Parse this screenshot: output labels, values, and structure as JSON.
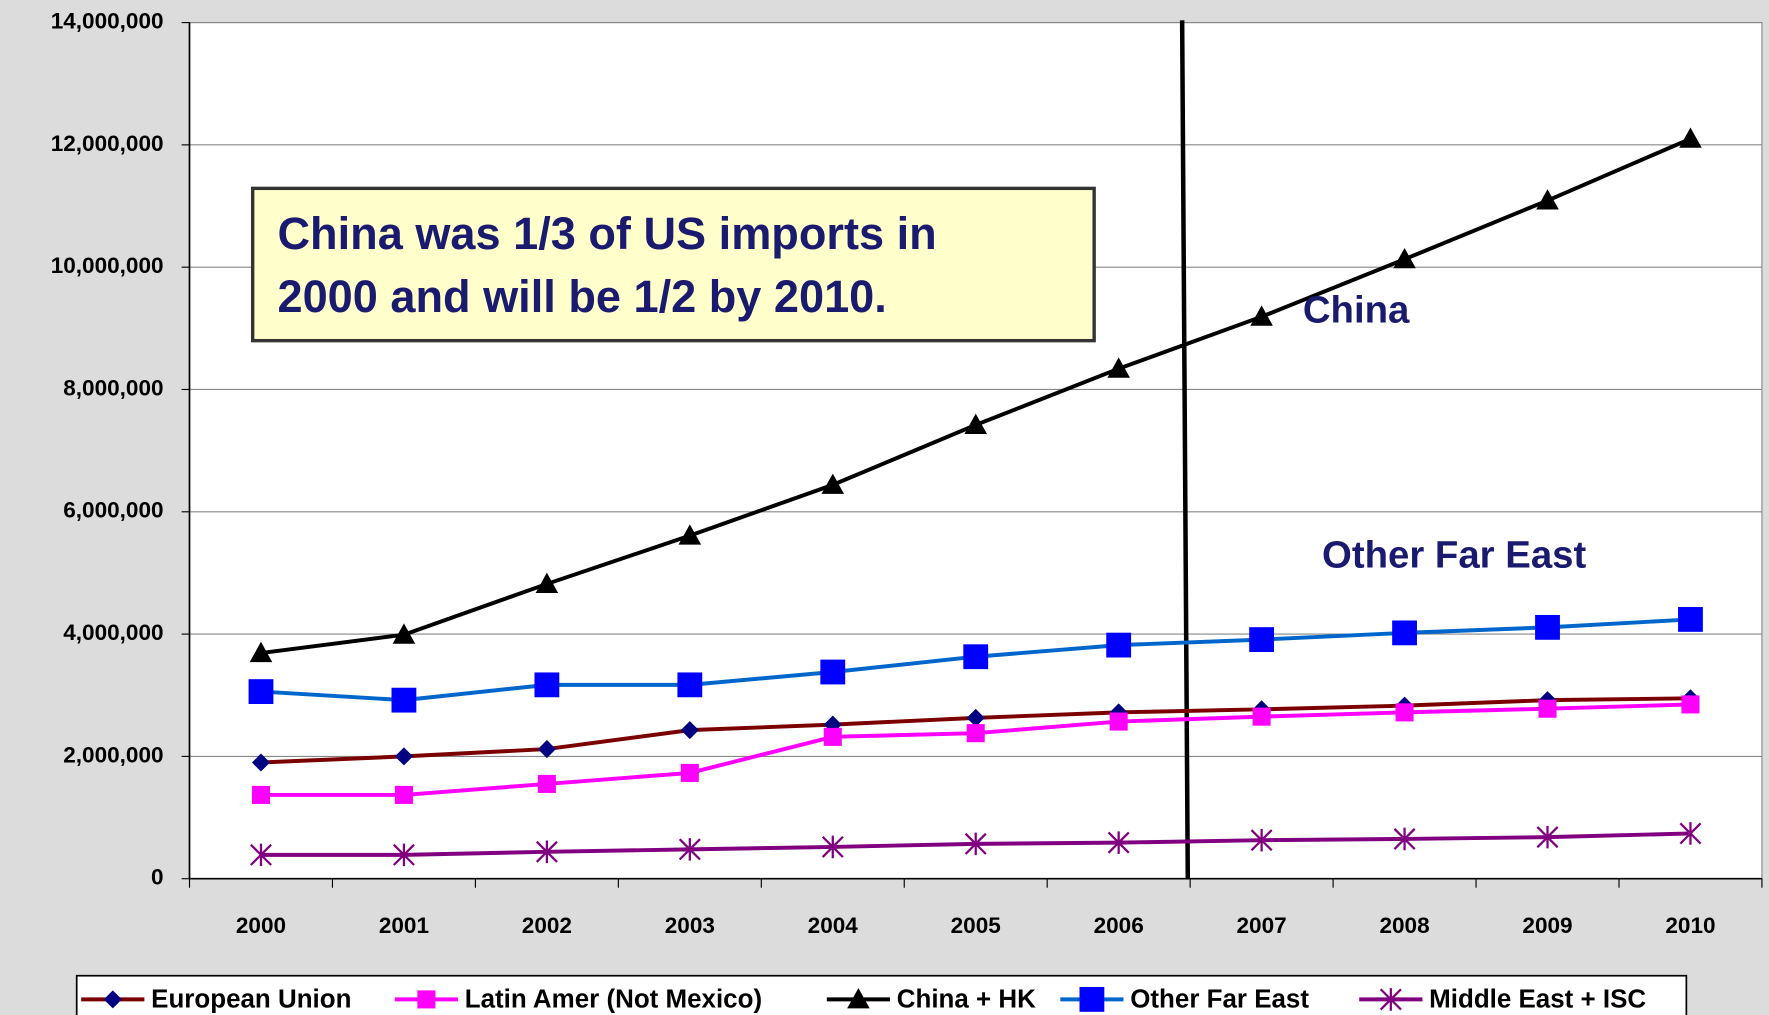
{
  "chart_data": {
    "type": "line",
    "categories": [
      "2000",
      "2001",
      "2002",
      "2003",
      "2004",
      "2005",
      "2006",
      "2007",
      "2008",
      "2009",
      "2010"
    ],
    "ylim": [
      0,
      14000000
    ],
    "yticks": [
      0,
      {
        "value": 2000000,
        "label": "2,000,000"
      },
      {
        "value": 4000000,
        "label": "4,000,000"
      },
      {
        "value": 6000000,
        "label": "6,000,000"
      },
      {
        "value": 8000000,
        "label": "8,000,000"
      },
      {
        "value": 10000000,
        "label": "10,000,000"
      },
      {
        "value": 12000000,
        "label": "12,000,000"
      },
      {
        "value": 14000000,
        "label": "14,000,000"
      }
    ],
    "grid": true,
    "legend": "bottom",
    "series": [
      {
        "name": "European Union",
        "color": "#7b0000",
        "marker": "diamond",
        "marker_color": "#000080",
        "values": [
          1900000,
          2000000,
          2120000,
          2430000,
          2520000,
          2630000,
          2720000,
          2770000,
          2830000,
          2920000,
          2950000
        ]
      },
      {
        "name": "Latin Amer (Not Mexico)",
        "color": "#ff00ff",
        "marker": "square",
        "marker_color": "#ff00ff",
        "values": [
          1370000,
          1370000,
          1550000,
          1730000,
          2320000,
          2380000,
          2570000,
          2650000,
          2720000,
          2780000,
          2850000
        ]
      },
      {
        "name": "China + HK",
        "color": "#000000",
        "marker": "triangle",
        "marker_color": "#000000",
        "values": [
          3690000,
          3990000,
          4820000,
          5610000,
          6440000,
          7420000,
          8340000,
          9190000,
          10130000,
          11090000,
          12100000
        ]
      },
      {
        "name": "Other Far East",
        "color": "#0066cc",
        "marker": "bigsquare",
        "marker_color": "#0000ff",
        "values": [
          3060000,
          2920000,
          3170000,
          3170000,
          3380000,
          3630000,
          3820000,
          3910000,
          4020000,
          4110000,
          4240000
        ]
      },
      {
        "name": "Middle East + ISC",
        "color": "#800080",
        "marker": "asterisk",
        "marker_color": "#800080",
        "values": [
          390000,
          390000,
          440000,
          480000,
          520000,
          570000,
          590000,
          630000,
          650000,
          680000,
          740000
        ]
      }
    ],
    "annotations": {
      "box": [
        "China was 1/3 of US imports in",
        "2000 and will be 1/2 by 2010."
      ],
      "china_label": "China",
      "other_far_east_label": "Other Far East"
    }
  }
}
